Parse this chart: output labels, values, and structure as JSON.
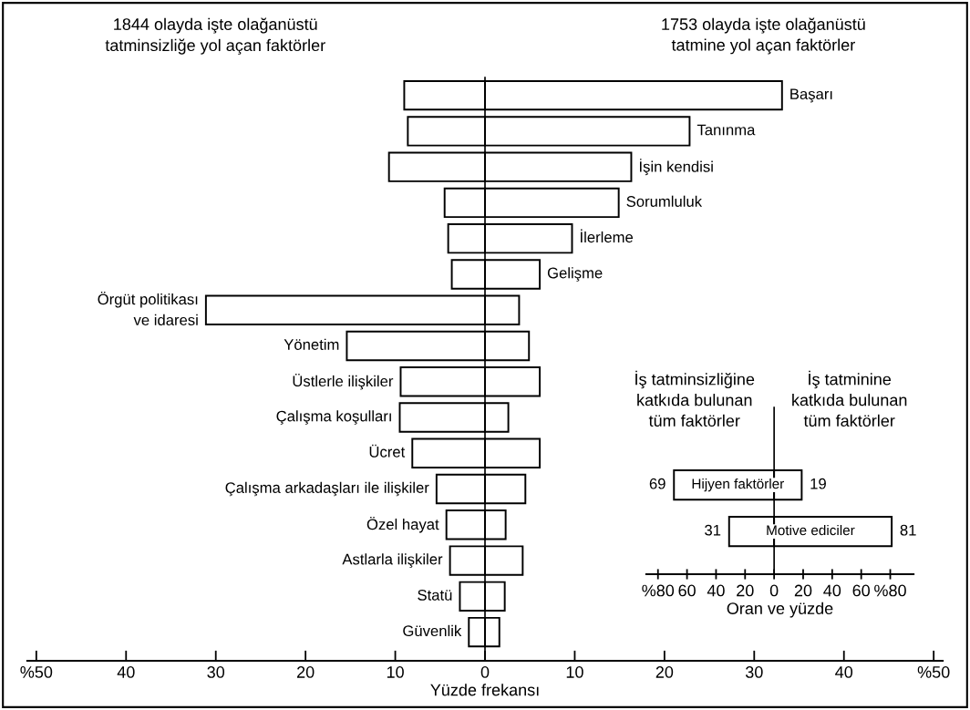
{
  "chart_data": [
    {
      "type": "bar",
      "orientation": "horizontal",
      "stacked": true,
      "categories": [
        "Başarı",
        "Tanınma",
        "İşin kendisi",
        "Sorumluluk",
        "İlerleme",
        "Gelişme",
        "Örgüt politikası\nve idaresi",
        "Yönetim",
        "Üstlerle ilişkiler",
        "Çalışma koşulları",
        "Ücret",
        "Çalışma arkadaşları ile ilişkiler",
        "Özel hayat",
        "Astlarla ilişkiler",
        "Statü",
        "Güvenlik"
      ],
      "series": [
        {
          "color": "#ffffff",
          "values": [
            -9.0,
            -8.6,
            -10.7,
            -4.5,
            -4.1,
            -3.7,
            -31.1,
            -15.4,
            -9.4,
            -9.5,
            -8.1,
            -5.4,
            -4.3,
            -3.9,
            -2.8,
            -1.8
          ]
        },
        {
          "color": "#ffffff",
          "values": [
            33.1,
            22.8,
            16.3,
            14.9,
            9.7,
            6.1,
            3.8,
            4.9,
            6.1,
            2.6,
            6.1,
            4.5,
            2.3,
            4.2,
            2.2,
            1.6
          ]
        }
      ],
      "xlim": [
        -51,
        51
      ],
      "xticks": [
        {
          "value": -50,
          "label": "%50"
        },
        {
          "value": -40,
          "label": "40"
        },
        {
          "value": -30,
          "label": "30"
        },
        {
          "value": -20,
          "label": "20"
        },
        {
          "value": -10,
          "label": "10"
        },
        0,
        10,
        20,
        30,
        40,
        {
          "value": 50,
          "label": "%50"
        }
      ],
      "xlabel": "Yüzde frekansı",
      "annotations": [
        "1844 olayda işte olağanüstü\ntatminsizliğe yol açan faktörler",
        "1753 olayda işte olağanüstü\ntatmine yol açan faktörler"
      ]
    },
    {
      "type": "bar",
      "orientation": "horizontal",
      "stacked": true,
      "categories": [
        "Hijyen faktörler",
        "Motive ediciler"
      ],
      "series": [
        {
          "color": "#ffffff",
          "values": [
            -69,
            -31
          ]
        },
        {
          "color": "#ffffff",
          "values": [
            19,
            81
          ]
        }
      ],
      "xlim": [
        -88,
        96
      ],
      "xticks": [
        {
          "value": -80,
          "label": "%80"
        },
        {
          "value": -60,
          "label": "60"
        },
        {
          "value": -40,
          "label": "40"
        },
        {
          "value": -20,
          "label": "20"
        },
        0,
        20,
        40,
        60,
        {
          "value": 80,
          "label": "%80"
        }
      ],
      "xlabel": "Oran ve yüzde",
      "annotations": [
        "İş tatminsizliğine\nkatkıda bulunan\ntüm faktörler",
        "İş tatminine\nkatkıda bulunan\ntüm faktörler",
        "69",
        "19",
        "31",
        "81"
      ]
    }
  ]
}
